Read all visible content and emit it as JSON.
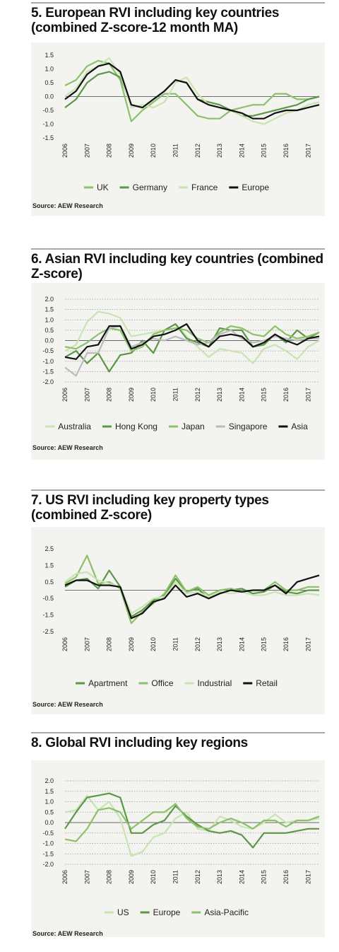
{
  "source": "Source: AEW Research",
  "chart_data": [
    {
      "type": "line",
      "title": "5. European RVI including key countries (combined Z-score-12 month MA)",
      "x": [
        2006,
        2006.5,
        2007,
        2007.5,
        2008,
        2008.5,
        2009,
        2009.5,
        2010,
        2010.5,
        2011,
        2011.5,
        2012,
        2012.5,
        2013,
        2013.5,
        2014,
        2014.5,
        2015,
        2015.5,
        2016,
        2016.5,
        2017,
        2017.5
      ],
      "xlim": [
        2006,
        2017.5
      ],
      "xticks": [
        2006,
        2007,
        2008,
        2009,
        2010,
        2011,
        2012,
        2013,
        2014,
        2015,
        2016,
        2017
      ],
      "ylim": [
        -1.5,
        1.5
      ],
      "yticks": [
        1.5,
        {
          "value": 1,
          "label": "1.0"
        },
        0.5,
        {
          "value": 0,
          "label": "0.0"
        },
        -0.5,
        {
          "value": -1,
          "label": "-1.0"
        },
        -1.5
      ],
      "grid": false,
      "series": [
        {
          "name": "UK",
          "color": "#8cc06a",
          "values": [
            0.4,
            0.6,
            1.1,
            1.3,
            1.2,
            0.6,
            -0.9,
            -0.5,
            -0.2,
            0.1,
            0.1,
            -0.3,
            -0.7,
            -0.8,
            -0.8,
            -0.5,
            -0.4,
            -0.3,
            -0.3,
            0.1,
            0.1,
            -0.1,
            -0.1,
            0.0
          ]
        },
        {
          "name": "Germany",
          "color": "#5e9648",
          "values": [
            -0.4,
            -0.1,
            0.5,
            0.8,
            0.9,
            0.7,
            -0.3,
            -0.4,
            -0.1,
            0.2,
            0.6,
            0.5,
            -0.1,
            -0.2,
            -0.3,
            -0.5,
            -0.7,
            -0.7,
            -0.6,
            -0.5,
            -0.4,
            -0.3,
            -0.1,
            0.0
          ]
        },
        {
          "name": "France",
          "color": "#c9e3b3",
          "values": [
            0.0,
            0.3,
            0.9,
            1.1,
            1.4,
            0.8,
            -0.4,
            -0.3,
            -0.4,
            -0.2,
            0.5,
            0.7,
            0.1,
            -0.3,
            -0.4,
            -0.5,
            -0.7,
            -0.9,
            -1.0,
            -0.8,
            -0.6,
            -0.5,
            -0.3,
            -0.2
          ]
        },
        {
          "name": "Europe",
          "color": "#111111",
          "values": [
            -0.1,
            0.2,
            0.8,
            1.1,
            1.2,
            0.9,
            -0.3,
            -0.4,
            -0.1,
            0.2,
            0.6,
            0.5,
            -0.1,
            -0.3,
            -0.4,
            -0.5,
            -0.6,
            -0.8,
            -0.8,
            -0.6,
            -0.5,
            -0.5,
            -0.4,
            -0.3
          ]
        }
      ]
    },
    {
      "type": "line",
      "title": "6. Asian RVI including key countries (combined Z-score)",
      "x": [
        2006,
        2006.5,
        2007,
        2007.5,
        2008,
        2008.5,
        2009,
        2009.5,
        2010,
        2010.5,
        2011,
        2011.5,
        2012,
        2012.5,
        2013,
        2013.5,
        2014,
        2014.5,
        2015,
        2015.5,
        2016,
        2016.5,
        2017,
        2017.5
      ],
      "xlim": [
        2006,
        2017.5
      ],
      "xticks": [
        2006,
        2007,
        2008,
        2009,
        2010,
        2011,
        2012,
        2013,
        2014,
        2015,
        2016,
        2017
      ],
      "ylim": [
        -2,
        2
      ],
      "yticks": [
        {
          "value": 2,
          "label": "2.0"
        },
        1.5,
        {
          "value": 1,
          "label": "1.0"
        },
        0.5,
        {
          "value": 0,
          "label": "0.0"
        },
        -0.5,
        {
          "value": -1,
          "label": "-1.0"
        },
        -1.5,
        {
          "value": -2,
          "label": "-2.0"
        }
      ],
      "grid": true,
      "series": [
        {
          "name": "Australia",
          "color": "#c9e3b3",
          "values": [
            -0.5,
            -0.2,
            0.9,
            1.4,
            1.3,
            1.1,
            0.2,
            0.3,
            0.4,
            0.5,
            0.8,
            0.2,
            -0.3,
            -0.8,
            -0.4,
            -0.5,
            -0.6,
            -1.1,
            -0.4,
            -0.2,
            -0.5,
            -0.9,
            -0.3,
            0.0
          ]
        },
        {
          "name": "Hong Kong",
          "color": "#5e9648",
          "values": [
            -0.8,
            -0.5,
            -1.1,
            -0.6,
            -1.5,
            -0.7,
            -0.6,
            0.0,
            -0.6,
            0.5,
            0.8,
            0.1,
            -0.1,
            -0.3,
            0.6,
            0.5,
            0.5,
            -0.3,
            -0.2,
            0.3,
            -0.1,
            0.5,
            0.1,
            0.4
          ]
        },
        {
          "name": "Japan",
          "color": "#8cc06a",
          "values": [
            -0.3,
            -0.4,
            -0.1,
            0.3,
            0.6,
            0.5,
            -0.5,
            -0.3,
            0.3,
            0.5,
            0.6,
            0.5,
            0.1,
            -0.1,
            0.4,
            0.7,
            0.6,
            0.3,
            0.2,
            0.7,
            0.3,
            0.1,
            0.2,
            0.4
          ]
        },
        {
          "name": "Singapore",
          "color": "#bbbbbb",
          "values": [
            -1.3,
            -1.7,
            -0.6,
            -0.6,
            0.6,
            0.7,
            -0.3,
            -0.1,
            0.1,
            0.0,
            0.2,
            0.0,
            -0.2,
            -0.1,
            0.3,
            0.5,
            0.1,
            -0.1,
            0.0,
            0.2,
            0.1,
            0.0,
            0.1,
            0.1
          ]
        },
        {
          "name": "Asia",
          "color": "#111111",
          "values": [
            -0.8,
            -0.9,
            -0.3,
            -0.2,
            0.7,
            0.7,
            -0.4,
            -0.2,
            0.2,
            0.3,
            0.5,
            0.8,
            0.0,
            -0.3,
            0.2,
            0.3,
            0.2,
            -0.3,
            -0.1,
            0.3,
            0.0,
            -0.2,
            0.1,
            0.2
          ]
        }
      ]
    },
    {
      "type": "line",
      "title": "7. US RVI including key property types (combined Z-score)",
      "x": [
        2006,
        2006.5,
        2007,
        2007.5,
        2008,
        2008.5,
        2009,
        2009.5,
        2010,
        2010.5,
        2011,
        2011.5,
        2012,
        2012.5,
        2013,
        2013.5,
        2014,
        2014.5,
        2015,
        2015.5,
        2016,
        2016.5,
        2017,
        2017.5
      ],
      "xlim": [
        2006,
        2017.5
      ],
      "xticks": [
        2006,
        2007,
        2008,
        2009,
        2010,
        2011,
        2012,
        2013,
        2014,
        2015,
        2016,
        2017
      ],
      "ylim": [
        -2.5,
        2.5
      ],
      "yticks": [
        2.5,
        1.5,
        0.5,
        -0.5,
        -1.5,
        -2.5
      ],
      "grid": false,
      "series": [
        {
          "name": "Apartment",
          "color": "#5e9648",
          "values": [
            0.2,
            0.6,
            0.7,
            0.1,
            1.2,
            0.2,
            -1.6,
            -1.2,
            -0.6,
            -0.3,
            0.7,
            -0.1,
            0.1,
            -0.5,
            -0.2,
            0.0,
            0.1,
            -0.2,
            -0.1,
            0.3,
            -0.1,
            -0.2,
            0.0,
            0.0
          ]
        },
        {
          "name": "Office",
          "color": "#8cc06a",
          "values": [
            0.4,
            0.8,
            2.1,
            0.4,
            0.5,
            0.1,
            -2.0,
            -1.3,
            -0.8,
            -0.2,
            0.9,
            -0.1,
            0.2,
            -0.3,
            0.0,
            0.1,
            -0.1,
            0.0,
            0.0,
            0.5,
            0.0,
            0.0,
            0.2,
            0.2
          ]
        },
        {
          "name": "Industrial",
          "color": "#c9e3b3",
          "values": [
            0.5,
            1.0,
            1.1,
            0.6,
            0.4,
            0.2,
            -1.4,
            -1.0,
            -0.5,
            -0.4,
            0.5,
            -0.2,
            -0.1,
            -0.4,
            -0.1,
            -0.2,
            -0.1,
            -0.3,
            -0.3,
            -0.1,
            -0.3,
            -0.3,
            -0.2,
            -0.3
          ]
        },
        {
          "name": "Retail",
          "color": "#111111",
          "values": [
            0.3,
            0.6,
            0.6,
            0.3,
            0.3,
            0.2,
            -1.7,
            -1.4,
            -0.7,
            -0.5,
            0.3,
            -0.4,
            -0.2,
            -0.5,
            -0.2,
            0.0,
            -0.1,
            0.0,
            0.0,
            0.3,
            -0.2,
            0.5,
            0.7,
            0.9
          ]
        }
      ]
    },
    {
      "type": "line",
      "title": "8. Global RVI including key regions",
      "x": [
        2006,
        2006.5,
        2007,
        2007.5,
        2008,
        2008.5,
        2009,
        2009.5,
        2010,
        2010.5,
        2011,
        2011.5,
        2012,
        2012.5,
        2013,
        2013.5,
        2014,
        2014.5,
        2015,
        2015.5,
        2016,
        2016.5,
        2017,
        2017.5
      ],
      "xlim": [
        2006,
        2017.5
      ],
      "xticks": [
        2006,
        2007,
        2008,
        2009,
        2010,
        2011,
        2012,
        2013,
        2014,
        2015,
        2016,
        2017
      ],
      "ylim": [
        -2,
        2
      ],
      "yticks": [
        {
          "value": 2,
          "label": "2.0"
        },
        1.5,
        {
          "value": 1,
          "label": "1.0"
        },
        0.5,
        {
          "value": 0,
          "label": "0.0"
        },
        -0.5,
        {
          "value": -1,
          "label": "-1.0"
        },
        -1.5,
        {
          "value": -2,
          "label": "-2.0"
        }
      ],
      "grid": true,
      "series": [
        {
          "name": "US",
          "color": "#c9e3b3",
          "values": [
            0.5,
            0.6,
            1.3,
            0.6,
            1.0,
            0.2,
            -1.6,
            -1.4,
            -0.7,
            -0.5,
            0.2,
            0.5,
            -0.3,
            -0.4,
            0.3,
            0.1,
            -0.2,
            -0.3,
            0.0,
            0.4,
            0.0,
            0.1,
            0.1,
            0.2
          ]
        },
        {
          "name": "Europe",
          "color": "#5e9648",
          "values": [
            -0.3,
            0.5,
            1.2,
            1.3,
            1.4,
            1.2,
            -0.5,
            -0.5,
            -0.1,
            0.1,
            0.8,
            0.3,
            -0.1,
            -0.4,
            -0.5,
            -0.4,
            -0.6,
            -1.2,
            -0.5,
            -0.5,
            -0.5,
            -0.4,
            -0.3,
            -0.3
          ]
        },
        {
          "name": "Asia-Pacific",
          "color": "#8cc06a",
          "values": [
            -0.8,
            -0.9,
            -0.3,
            0.6,
            0.7,
            0.5,
            -0.3,
            0.1,
            0.5,
            0.5,
            0.9,
            0.2,
            -0.2,
            -0.3,
            0.0,
            0.2,
            0.0,
            -0.3,
            0.1,
            0.1,
            -0.2,
            0.1,
            0.1,
            0.3
          ]
        }
      ]
    }
  ]
}
